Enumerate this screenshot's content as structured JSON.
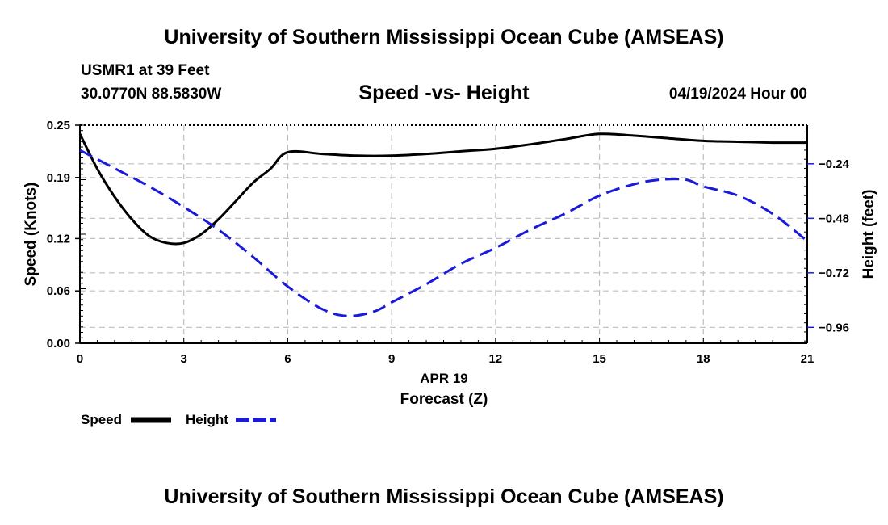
{
  "header": {
    "title": "University of Southern Mississippi Ocean Cube (AMSEAS)",
    "station": "USMR1 at 39 Feet",
    "coords": "30.0770N  88.5830W",
    "chart_title": "Speed -vs- Height",
    "date": "04/19/2024 Hour 00"
  },
  "footer": {
    "title": "University of Southern Mississippi Ocean Cube (AMSEAS)"
  },
  "chart_data": {
    "type": "line",
    "title": "Speed -vs- Height",
    "xlabel": "Forecast (Z)",
    "xlabel_date": "APR 19",
    "x_ticks": [
      "0",
      "3",
      "6",
      "9",
      "12",
      "15",
      "18",
      "21"
    ],
    "xlim": [
      0,
      21
    ],
    "y_left": {
      "label": "Speed (Knots)",
      "ticks": [
        "0.00",
        "0.06",
        "0.12",
        "0.19",
        "0.25"
      ],
      "lim": [
        0,
        0.25
      ]
    },
    "y_right": {
      "label": "Height (feet)",
      "ticks": [
        "−0.24",
        "−0.48",
        "−0.72",
        "−0.96"
      ],
      "lim": [
        -1.03,
        -0.07
      ]
    },
    "grid": true,
    "legend": [
      {
        "name": "Speed",
        "color": "#000000",
        "style": "solid"
      },
      {
        "name": "Height",
        "color": "#1a1adb",
        "style": "dashed"
      }
    ],
    "series": [
      {
        "name": "Speed",
        "axis": "left",
        "color": "#000000",
        "x": [
          0,
          0.5,
          1,
          1.5,
          2,
          2.5,
          3,
          3.5,
          4,
          4.5,
          5,
          5.5,
          6,
          7,
          8,
          9,
          10,
          11,
          12,
          13,
          14,
          15,
          16,
          17,
          18,
          19,
          20,
          21
        ],
        "values": [
          0.24,
          0.2,
          0.168,
          0.142,
          0.123,
          0.115,
          0.115,
          0.125,
          0.142,
          0.163,
          0.184,
          0.2,
          0.219,
          0.217,
          0.215,
          0.215,
          0.217,
          0.22,
          0.223,
          0.228,
          0.234,
          0.24,
          0.238,
          0.235,
          0.232,
          0.231,
          0.23,
          0.23
        ]
      },
      {
        "name": "Height",
        "axis": "right",
        "color": "#1a1adb",
        "x": [
          0,
          1,
          2,
          3,
          4,
          5,
          6,
          7,
          7.75,
          8.5,
          9,
          10,
          11,
          12,
          13,
          14,
          15,
          16,
          16.75,
          17.5,
          18,
          19,
          20,
          21
        ],
        "values": [
          -0.18,
          -0.26,
          -0.34,
          -0.43,
          -0.53,
          -0.65,
          -0.78,
          -0.88,
          -0.91,
          -0.89,
          -0.85,
          -0.77,
          -0.68,
          -0.61,
          -0.53,
          -0.46,
          -0.38,
          -0.33,
          -0.31,
          -0.31,
          -0.34,
          -0.38,
          -0.46,
          -0.58
        ]
      }
    ]
  }
}
